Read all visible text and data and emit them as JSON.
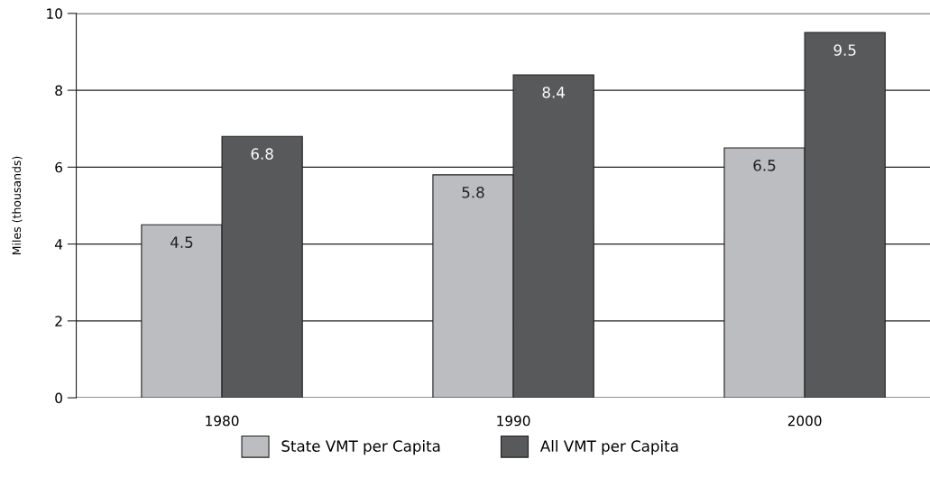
{
  "chart_data": {
    "type": "bar",
    "ylabel": "Miles (thousands)",
    "categories": [
      "1980",
      "1990",
      "2000"
    ],
    "series": [
      {
        "name": "State VMT per Capita",
        "color": "#bcbdc0",
        "values": [
          4.5,
          5.8,
          6.5
        ]
      },
      {
        "name": "All VMT per Capita",
        "color": "#58595b",
        "values": [
          6.8,
          8.4,
          9.5
        ]
      }
    ],
    "ylim": [
      0,
      10
    ],
    "yticks": [
      0,
      2,
      4,
      6,
      8,
      10
    ],
    "grid": "y",
    "data_labels": true,
    "legend": "bottom"
  }
}
